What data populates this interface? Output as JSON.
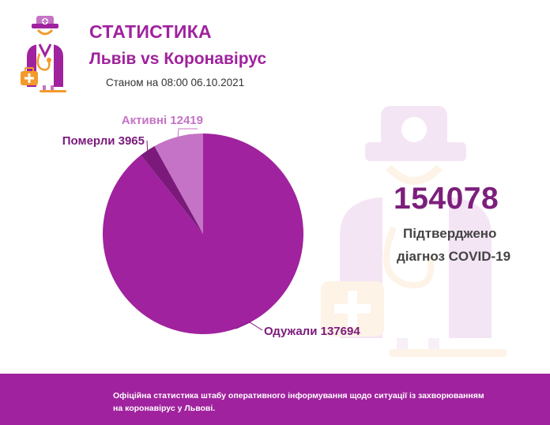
{
  "header": {
    "title": "СТАТИСТИКА",
    "subtitle": "Львів vs Коронавірус",
    "as_of": "Станом на 08:00 06.10.2021"
  },
  "summary": {
    "confirmed_total": "154078",
    "confirmed_label_line1": "Підтверджено",
    "confirmed_label_line2": "діагноз COVID-19"
  },
  "footer": {
    "text": "Офіційна статистика штабу оперативного інформування щодо ситуації із захворюванням на коронавірус у Львові."
  },
  "icons": {
    "logo": "doctor-icon",
    "watermark": "doctor-watermark-icon"
  },
  "colors": {
    "brand": "#a0229e",
    "recovered": "#a0229e",
    "deaths": "#7b1a7b",
    "active": "#c473c6",
    "footer_bg": "#a0229e"
  },
  "chart_data": {
    "type": "pie",
    "title": "",
    "slices": [
      {
        "label": "Одужали",
        "value": 137694,
        "text": "Одужали 137694",
        "color": "#a0229e",
        "label_color": "#7b1a7b"
      },
      {
        "label": "Померли",
        "value": 3965,
        "text": "Померли 3965",
        "color": "#7b1a7b",
        "label_color": "#7b1a7b"
      },
      {
        "label": "Активні",
        "value": 12419,
        "text": "Активні 12419",
        "color": "#c473c6",
        "label_color": "#c473c6"
      }
    ]
  }
}
